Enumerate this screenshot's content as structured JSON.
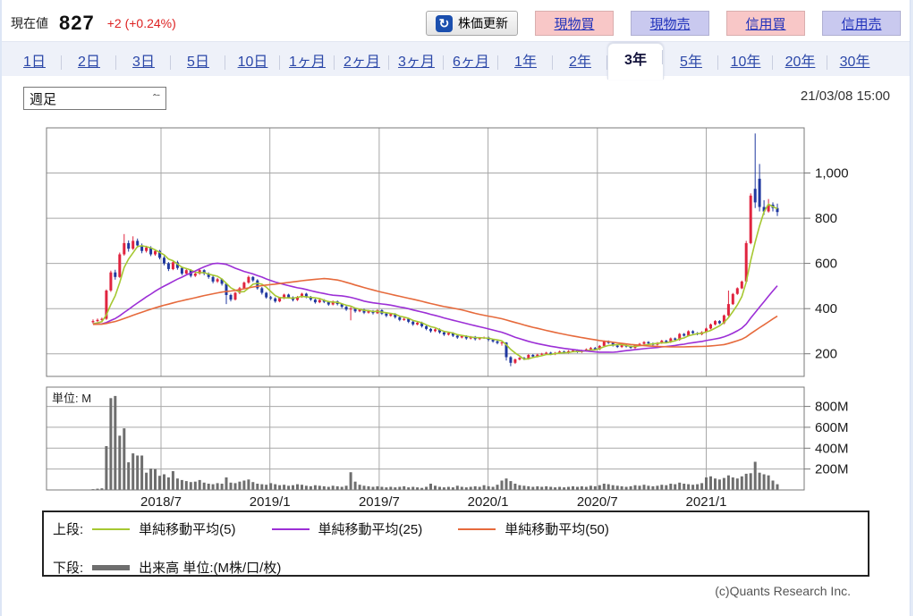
{
  "header": {
    "current_label": "現在値",
    "price": "827",
    "change": "+2 (+0.24%)",
    "refresh_label": "株価更新",
    "refresh_icon": "refresh-arrow",
    "trade_buttons": [
      {
        "label": "現物買",
        "kind": "buy"
      },
      {
        "label": "現物売",
        "kind": "sell"
      },
      {
        "label": "信用買",
        "kind": "buy"
      },
      {
        "label": "信用売",
        "kind": "sell"
      }
    ]
  },
  "tabs": {
    "items": [
      "1日",
      "2日",
      "3日",
      "5日",
      "10日",
      "1ヶ月",
      "2ヶ月",
      "3ヶ月",
      "6ヶ月",
      "1年",
      "2年",
      "3年",
      "5年",
      "10年",
      "20年",
      "30年"
    ],
    "selected_index": 11
  },
  "controls": {
    "period_select_value": "週足",
    "timestamp": "21/03/08 15:00"
  },
  "chart_data": {
    "type": "candlestick+volume",
    "period": "weekly",
    "range_label": "3年",
    "price_axis": {
      "min": 100,
      "max": 1200,
      "ticks": [
        200,
        400,
        600,
        800,
        1000
      ],
      "tick_labels": [
        "200",
        "400",
        "600",
        "800",
        "1,000"
      ]
    },
    "volume_axis": {
      "min": 0,
      "max": 985,
      "ticks": [
        200,
        400,
        600,
        800
      ],
      "tick_labels": [
        "200M",
        "400M",
        "600M",
        "800M"
      ],
      "unit_label": "単位: M"
    },
    "x_axis": {
      "tick_labels": [
        "2018/7",
        "2019/1",
        "2019/7",
        "2020/1",
        "2020/7",
        "2021/1"
      ],
      "tick_weeks": [
        15.3,
        39.8,
        64.4,
        88.9,
        113.5,
        138
      ]
    },
    "grid": true,
    "candle_up_color": "#e0243f",
    "candle_down_color": "#2038a0",
    "volume_color": "#6e6e6e",
    "grid_color": "#a8a8a8",
    "border_color": "#7a7a7a",
    "ma_seed_close": 330,
    "ma_series": [
      {
        "name": "単純移動平均(5)",
        "period": 5,
        "color": "#a6c832"
      },
      {
        "name": "単純移動平均(25)",
        "period": 25,
        "color": "#9c2fd6"
      },
      {
        "name": "単純移動平均(50)",
        "period": 50,
        "color": "#e66a3c"
      }
    ],
    "candles": [
      [
        340,
        352,
        332,
        345
      ],
      [
        345,
        356,
        340,
        350
      ],
      [
        350,
        360,
        344,
        355
      ],
      [
        355,
        485,
        350,
        480
      ],
      [
        480,
        568,
        474,
        560
      ],
      [
        560,
        572,
        528,
        540
      ],
      [
        540,
        648,
        536,
        640
      ],
      [
        640,
        730,
        634,
        690
      ],
      [
        690,
        702,
        652,
        665
      ],
      [
        665,
        720,
        660,
        700
      ],
      [
        700,
        710,
        670,
        680
      ],
      [
        680,
        688,
        645,
        655
      ],
      [
        655,
        678,
        648,
        670
      ],
      [
        670,
        676,
        632,
        640
      ],
      [
        640,
        662,
        634,
        655
      ],
      [
        655,
        660,
        618,
        625
      ],
      [
        625,
        632,
        592,
        600
      ],
      [
        600,
        606,
        566,
        575
      ],
      [
        575,
        610,
        570,
        605
      ],
      [
        605,
        612,
        572,
        580
      ],
      [
        580,
        586,
        548,
        555
      ],
      [
        555,
        576,
        550,
        570
      ],
      [
        570,
        574,
        538,
        545
      ],
      [
        545,
        562,
        540,
        555
      ],
      [
        555,
        576,
        550,
        570
      ],
      [
        570,
        574,
        548,
        555
      ],
      [
        555,
        560,
        532,
        540
      ],
      [
        540,
        546,
        512,
        520
      ],
      [
        520,
        536,
        514,
        530
      ],
      [
        530,
        534,
        502,
        510
      ],
      [
        510,
        514,
        420,
        460
      ],
      [
        460,
        466,
        432,
        440
      ],
      [
        440,
        474,
        436,
        470
      ],
      [
        470,
        496,
        464,
        490
      ],
      [
        490,
        520,
        486,
        515
      ],
      [
        515,
        546,
        510,
        540
      ],
      [
        540,
        544,
        518,
        525
      ],
      [
        525,
        530,
        484,
        490
      ],
      [
        490,
        496,
        462,
        470
      ],
      [
        470,
        474,
        444,
        450
      ],
      [
        450,
        456,
        438,
        445
      ],
      [
        445,
        450,
        426,
        432
      ],
      [
        432,
        452,
        428,
        448
      ],
      [
        448,
        466,
        442,
        462
      ],
      [
        462,
        466,
        444,
        450
      ],
      [
        450,
        454,
        432,
        438
      ],
      [
        438,
        456,
        434,
        452
      ],
      [
        452,
        470,
        448,
        466
      ],
      [
        466,
        470,
        446,
        452
      ],
      [
        452,
        456,
        434,
        440
      ],
      [
        440,
        444,
        422,
        428
      ],
      [
        428,
        442,
        424,
        438
      ],
      [
        438,
        442,
        424,
        430
      ],
      [
        430,
        434,
        412,
        418
      ],
      [
        418,
        436,
        414,
        432
      ],
      [
        432,
        436,
        414,
        420
      ],
      [
        420,
        424,
        402,
        408
      ],
      [
        408,
        412,
        390,
        396
      ],
      [
        396,
        408,
        348,
        400
      ],
      [
        400,
        404,
        382,
        388
      ],
      [
        388,
        400,
        384,
        396
      ],
      [
        396,
        400,
        376,
        382
      ],
      [
        382,
        394,
        378,
        390
      ],
      [
        390,
        394,
        374,
        380
      ],
      [
        380,
        397,
        376,
        393
      ],
      [
        393,
        397,
        372,
        378
      ],
      [
        378,
        382,
        362,
        368
      ],
      [
        368,
        380,
        364,
        376
      ],
      [
        376,
        380,
        356,
        362
      ],
      [
        362,
        366,
        344,
        350
      ],
      [
        350,
        359,
        346,
        355
      ],
      [
        355,
        359,
        336,
        342
      ],
      [
        342,
        346,
        324,
        330
      ],
      [
        330,
        342,
        326,
        338
      ],
      [
        338,
        342,
        316,
        322
      ],
      [
        322,
        326,
        304,
        310
      ],
      [
        310,
        314,
        294,
        300
      ],
      [
        300,
        312,
        296,
        308
      ],
      [
        308,
        312,
        289,
        295
      ],
      [
        295,
        299,
        279,
        285
      ],
      [
        285,
        296,
        281,
        292
      ],
      [
        292,
        296,
        274,
        280
      ],
      [
        280,
        284,
        266,
        272
      ],
      [
        272,
        282,
        268,
        278
      ],
      [
        278,
        282,
        262,
        268
      ],
      [
        268,
        279,
        264,
        275
      ],
      [
        275,
        279,
        259,
        265
      ],
      [
        265,
        274,
        261,
        270
      ],
      [
        270,
        276,
        266,
        272
      ],
      [
        272,
        276,
        256,
        262
      ],
      [
        262,
        266,
        249,
        255
      ],
      [
        255,
        259,
        242,
        248
      ],
      [
        248,
        256,
        236,
        250
      ],
      [
        250,
        252,
        170,
        185
      ],
      [
        185,
        190,
        145,
        160
      ],
      [
        160,
        179,
        155,
        175
      ],
      [
        175,
        186,
        171,
        182
      ],
      [
        182,
        186,
        172,
        178
      ],
      [
        178,
        199,
        174,
        195
      ],
      [
        195,
        199,
        184,
        188
      ],
      [
        188,
        200,
        184,
        196
      ],
      [
        196,
        204,
        192,
        200
      ],
      [
        200,
        209,
        196,
        205
      ],
      [
        205,
        209,
        194,
        198
      ],
      [
        198,
        208,
        194,
        204
      ],
      [
        204,
        214,
        200,
        210
      ],
      [
        210,
        214,
        201,
        205
      ],
      [
        205,
        216,
        201,
        212
      ],
      [
        212,
        219,
        208,
        215
      ],
      [
        215,
        219,
        204,
        208
      ],
      [
        208,
        218,
        204,
        214
      ],
      [
        214,
        224,
        210,
        220
      ],
      [
        220,
        230,
        216,
        226
      ],
      [
        226,
        230,
        216,
        220
      ],
      [
        220,
        239,
        216,
        235
      ],
      [
        235,
        259,
        231,
        255
      ],
      [
        255,
        259,
        244,
        248
      ],
      [
        248,
        252,
        232,
        236
      ],
      [
        236,
        240,
        226,
        230
      ],
      [
        230,
        242,
        226,
        238
      ],
      [
        238,
        242,
        228,
        232
      ],
      [
        232,
        236,
        222,
        226
      ],
      [
        226,
        242,
        222,
        238
      ],
      [
        238,
        248,
        234,
        244
      ],
      [
        244,
        256,
        240,
        252
      ],
      [
        252,
        256,
        242,
        246
      ],
      [
        246,
        250,
        236,
        240
      ],
      [
        240,
        252,
        236,
        248
      ],
      [
        248,
        262,
        244,
        258
      ],
      [
        258,
        262,
        248,
        252
      ],
      [
        252,
        272,
        248,
        268
      ],
      [
        268,
        272,
        258,
        262
      ],
      [
        262,
        292,
        258,
        288
      ],
      [
        288,
        292,
        276,
        280
      ],
      [
        280,
        304,
        276,
        300
      ],
      [
        300,
        304,
        288,
        292
      ],
      [
        292,
        296,
        282,
        286
      ],
      [
        286,
        300,
        282,
        296
      ],
      [
        296,
        316,
        292,
        312
      ],
      [
        312,
        334,
        308,
        330
      ],
      [
        330,
        349,
        326,
        345
      ],
      [
        345,
        349,
        331,
        335
      ],
      [
        335,
        374,
        331,
        370
      ],
      [
        370,
        480,
        365,
        420
      ],
      [
        420,
        469,
        416,
        465
      ],
      [
        465,
        494,
        461,
        490
      ],
      [
        490,
        524,
        486,
        520
      ],
      [
        520,
        700,
        515,
        690
      ],
      [
        690,
        910,
        685,
        900
      ],
      [
        930,
        1175,
        845,
        870
      ],
      [
        975,
        1040,
        830,
        850
      ],
      [
        850,
        880,
        815,
        830
      ],
      [
        830,
        885,
        825,
        860
      ],
      [
        860,
        870,
        830,
        845
      ],
      [
        845,
        865,
        810,
        827
      ]
    ],
    "volumes": [
      8,
      12,
      15,
      420,
      880,
      900,
      520,
      590,
      265,
      350,
      330,
      330,
      165,
      205,
      200,
      135,
      150,
      120,
      180,
      110,
      95,
      85,
      75,
      80,
      95,
      70,
      60,
      55,
      65,
      60,
      120,
      70,
      65,
      80,
      90,
      100,
      75,
      60,
      55,
      50,
      65,
      55,
      45,
      50,
      40,
      45,
      55,
      50,
      40,
      35,
      45,
      40,
      35,
      30,
      40,
      35,
      30,
      40,
      170,
      80,
      50,
      40,
      35,
      30,
      35,
      30,
      25,
      30,
      25,
      30,
      35,
      25,
      30,
      25,
      20,
      30,
      60,
      40,
      30,
      25,
      30,
      25,
      40,
      30,
      25,
      30,
      35,
      30,
      45,
      35,
      30,
      50,
      90,
      110,
      85,
      60,
      45,
      40,
      35,
      30,
      35,
      30,
      35,
      30,
      25,
      30,
      25,
      30,
      35,
      30,
      35,
      30,
      40,
      35,
      45,
      60,
      55,
      45,
      40,
      35,
      30,
      35,
      45,
      40,
      50,
      40,
      35,
      40,
      50,
      45,
      60,
      55,
      70,
      60,
      55,
      50,
      55,
      65,
      120,
      130,
      110,
      100,
      115,
      140,
      120,
      110,
      130,
      155,
      160,
      270,
      165,
      150,
      140,
      90,
      55
    ]
  },
  "legend": {
    "row1_label": "上段:",
    "row2_label": "下段:",
    "volume_item_label": "出来高 単位:(M株/口/枚)"
  },
  "footer": {
    "copyright": "(c)Quants Research Inc."
  }
}
